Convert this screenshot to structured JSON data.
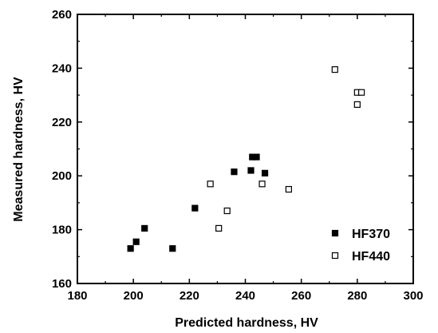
{
  "chart_data": {
    "type": "scatter",
    "xlabel": "Predicted hardness, HV",
    "ylabel": "Measured hardness, HV",
    "xlim": [
      180,
      300
    ],
    "ylim": [
      160,
      260
    ],
    "x_ticks": [
      "180",
      "200",
      "220",
      "240",
      "260",
      "280",
      "300"
    ],
    "y_ticks": [
      "160",
      "180",
      "200",
      "220",
      "240",
      "260"
    ],
    "grid": false,
    "legend_position": "bottom-right",
    "series": [
      {
        "name": "HF370",
        "marker": "filled-square",
        "color": "#000000",
        "points": [
          [
            199,
            173
          ],
          [
            201,
            175.5
          ],
          [
            204,
            180.5
          ],
          [
            214,
            173
          ],
          [
            222,
            188
          ],
          [
            236,
            201.5
          ],
          [
            242,
            202
          ],
          [
            242.5,
            207
          ],
          [
            244,
            207
          ],
          [
            247,
            201
          ]
        ]
      },
      {
        "name": "HF440",
        "marker": "open-square",
        "color": "#000000",
        "points": [
          [
            227.5,
            197
          ],
          [
            230.5,
            180.5
          ],
          [
            233.5,
            187
          ],
          [
            246,
            197
          ],
          [
            255.5,
            195
          ],
          [
            272,
            239.5
          ],
          [
            280,
            231
          ],
          [
            281.5,
            231
          ],
          [
            280,
            226.5
          ]
        ]
      }
    ]
  }
}
